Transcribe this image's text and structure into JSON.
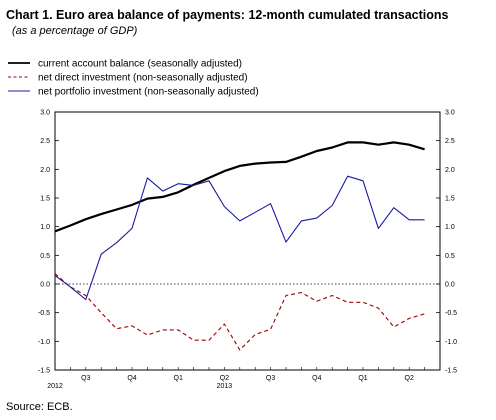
{
  "header": {
    "title": "Chart 1. Euro area balance of payments: 12-month cumulated transactions",
    "subtitle": "(as a percentage of GDP)"
  },
  "source": "Source:  ECB.",
  "chart_data": {
    "type": "line",
    "title": "Chart 1. Euro area balance of payments: 12-month cumulated transactions",
    "subtitle": "(as a percentage of GDP)",
    "ylim": [
      -1.5,
      3.0
    ],
    "y_ticks": [
      -1.5,
      -1.0,
      -0.5,
      0.0,
      0.5,
      1.0,
      1.5,
      2.0,
      2.5,
      3.0
    ],
    "y_tick_labels": [
      "-1.5",
      "-1.0",
      "-0.5",
      "0.0",
      "0.5",
      "1.0",
      "1.5",
      "2.0",
      "2.5",
      "3.0"
    ],
    "y_tick_labels_right": [
      "-1.5",
      "-1.0",
      "-0.5",
      "0.0",
      "0.5",
      "1.0",
      "1.5",
      "2.0",
      "2.5",
      "3.0"
    ],
    "x_labels": [
      {
        "label": "2012",
        "month": 6,
        "row": 2
      },
      {
        "label": "Q3",
        "month": 8,
        "row": 1
      },
      {
        "label": "Q4",
        "month": 11,
        "row": 1
      },
      {
        "label": "Q1",
        "month": 14,
        "row": 1
      },
      {
        "label": "Q2",
        "month": 17,
        "row": 1
      },
      {
        "label": "2013",
        "month": 17,
        "row": 2
      },
      {
        "label": "Q3",
        "month": 20,
        "row": 1
      },
      {
        "label": "Q4",
        "month": 23,
        "row": 1
      },
      {
        "label": "Q1",
        "month": 26,
        "row": 1
      },
      {
        "label": "Q2",
        "month": 29,
        "row": 1
      }
    ],
    "x_range_months": [
      6,
      31
    ],
    "zero_line": "dotted",
    "grid": false,
    "legend_position": "top-left",
    "series": [
      {
        "name": "current account balance",
        "name_suffix": "(seasonally adjusted)",
        "color": "#000000",
        "style": "solid-thick",
        "x": [
          6,
          7,
          8,
          9,
          10,
          11,
          12,
          13,
          14,
          15,
          16,
          17,
          18,
          19,
          20,
          21,
          22,
          23,
          24,
          25,
          26,
          27,
          28,
          29,
          30
        ],
        "values": [
          0.92,
          1.02,
          1.13,
          1.22,
          1.3,
          1.38,
          1.49,
          1.52,
          1.6,
          1.73,
          1.85,
          1.97,
          2.06,
          2.1,
          2.12,
          2.13,
          2.22,
          2.32,
          2.38,
          2.47,
          2.47,
          2.43,
          2.47,
          2.43,
          2.35
        ]
      },
      {
        "name": "net direct investment",
        "name_suffix": "(non-seasonally adjusted)",
        "color": "#a00000",
        "style": "dashed",
        "x": [
          6,
          7,
          8,
          9,
          10,
          11,
          12,
          13,
          14,
          15,
          16,
          17,
          18,
          19,
          20,
          21,
          22,
          23,
          24,
          25,
          26,
          27,
          28,
          29,
          30
        ],
        "values": [
          0.18,
          -0.05,
          -0.2,
          -0.5,
          -0.78,
          -0.73,
          -0.89,
          -0.8,
          -0.8,
          -0.98,
          -0.98,
          -0.7,
          -1.15,
          -0.88,
          -0.79,
          -0.2,
          -0.15,
          -0.3,
          -0.2,
          -0.32,
          -0.32,
          -0.42,
          -0.75,
          -0.6,
          -0.52
        ]
      },
      {
        "name": "net portfolio investment",
        "name_suffix": "(non-seasonally adjusted)",
        "color": "#1a1a9e",
        "style": "solid",
        "x": [
          6,
          7,
          8,
          9,
          10,
          11,
          12,
          13,
          14,
          15,
          16,
          17,
          18,
          19,
          20,
          21,
          22,
          23,
          24,
          25,
          26,
          27,
          28,
          29,
          30
        ],
        "values": [
          0.15,
          -0.05,
          -0.27,
          0.52,
          0.72,
          0.97,
          1.85,
          1.62,
          1.75,
          1.72,
          1.8,
          1.35,
          1.1,
          1.25,
          1.4,
          0.73,
          1.1,
          1.15,
          1.37,
          1.88,
          1.8,
          0.97,
          1.33,
          1.12,
          1.12
        ]
      }
    ]
  }
}
